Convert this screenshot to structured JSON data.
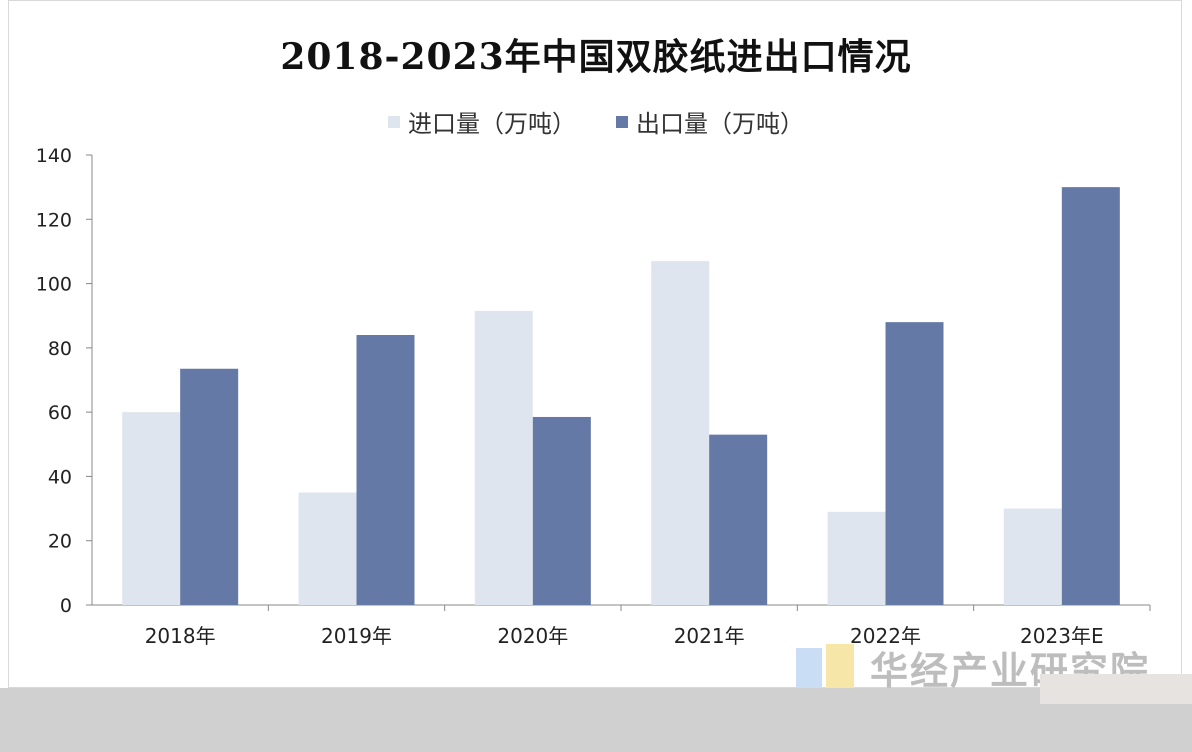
{
  "chart_data": {
    "type": "bar",
    "title": "2018-2023年中国双胶纸进出口情况",
    "categories": [
      "2018年",
      "2019年",
      "2020年",
      "2021年",
      "2022年",
      "2023年E"
    ],
    "series": [
      {
        "name": "进口量（万吨）",
        "values": [
          60,
          35,
          91.5,
          107,
          29,
          30
        ],
        "color": "#dfe5ef"
      },
      {
        "name": "出口量（万吨）",
        "values": [
          73.5,
          84,
          58.5,
          53,
          88,
          130
        ],
        "color": "#6479a6"
      }
    ],
    "ylim": [
      0,
      140
    ],
    "yticks": [
      0,
      20,
      40,
      60,
      80,
      100,
      120,
      140
    ],
    "legend_position": "top-center",
    "grid": false
  },
  "watermark": {
    "text": "华经产业研究院",
    "logo_colors": [
      "#c9def5",
      "#f6e7a8"
    ]
  }
}
